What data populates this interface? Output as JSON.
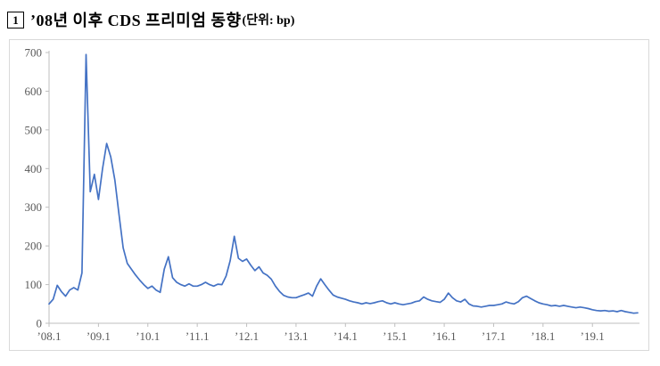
{
  "header": {
    "index_badge": "1",
    "title": "’08년 이후 CDS 프리미엄 동향",
    "unit": "(단위: bp)"
  },
  "chart_data": {
    "type": "line",
    "title": "’08년 이후 CDS 프리미엄 동향",
    "unit": "bp",
    "line_color": "#4472C4",
    "axis_color": "#BFBFBF",
    "label_color": "#595959",
    "ylim": [
      0,
      700
    ],
    "yticks": [
      0,
      100,
      200,
      300,
      400,
      500,
      600,
      700
    ],
    "x_start": "2008-01",
    "x_end": "2019-12",
    "xtick_labels": [
      "’08.1",
      "’09.1",
      "’10.1",
      "’11.1",
      "’12.1",
      "’13.1",
      "’14.1",
      "’15.1",
      "’16.1",
      "’17.1",
      "’18.1",
      "’19.1"
    ],
    "xtick_month_indices": [
      0,
      12,
      24,
      36,
      48,
      60,
      72,
      84,
      96,
      108,
      120,
      132
    ],
    "values_monthly": [
      50,
      62,
      98,
      82,
      70,
      86,
      92,
      86,
      130,
      695,
      340,
      385,
      320,
      400,
      465,
      430,
      370,
      280,
      195,
      155,
      140,
      125,
      112,
      100,
      90,
      96,
      86,
      80,
      140,
      172,
      118,
      106,
      100,
      96,
      102,
      96,
      96,
      100,
      106,
      100,
      96,
      101,
      100,
      122,
      162,
      225,
      168,
      160,
      166,
      150,
      136,
      146,
      130,
      124,
      114,
      96,
      82,
      72,
      68,
      66,
      66,
      70,
      74,
      78,
      70,
      96,
      115,
      100,
      86,
      73,
      68,
      65,
      62,
      58,
      55,
      53,
      50,
      53,
      51,
      53,
      56,
      58,
      53,
      50,
      53,
      50,
      48,
      50,
      52,
      56,
      58,
      68,
      62,
      58,
      56,
      54,
      62,
      78,
      66,
      58,
      55,
      62,
      50,
      45,
      44,
      42,
      44,
      46,
      46,
      48,
      50,
      55,
      52,
      50,
      56,
      66,
      70,
      64,
      58,
      53,
      50,
      48,
      45,
      46,
      44,
      46,
      44,
      42,
      40,
      42,
      40,
      38,
      35,
      33,
      32,
      33,
      31,
      32,
      30,
      33,
      30,
      28,
      26,
      27
    ]
  }
}
